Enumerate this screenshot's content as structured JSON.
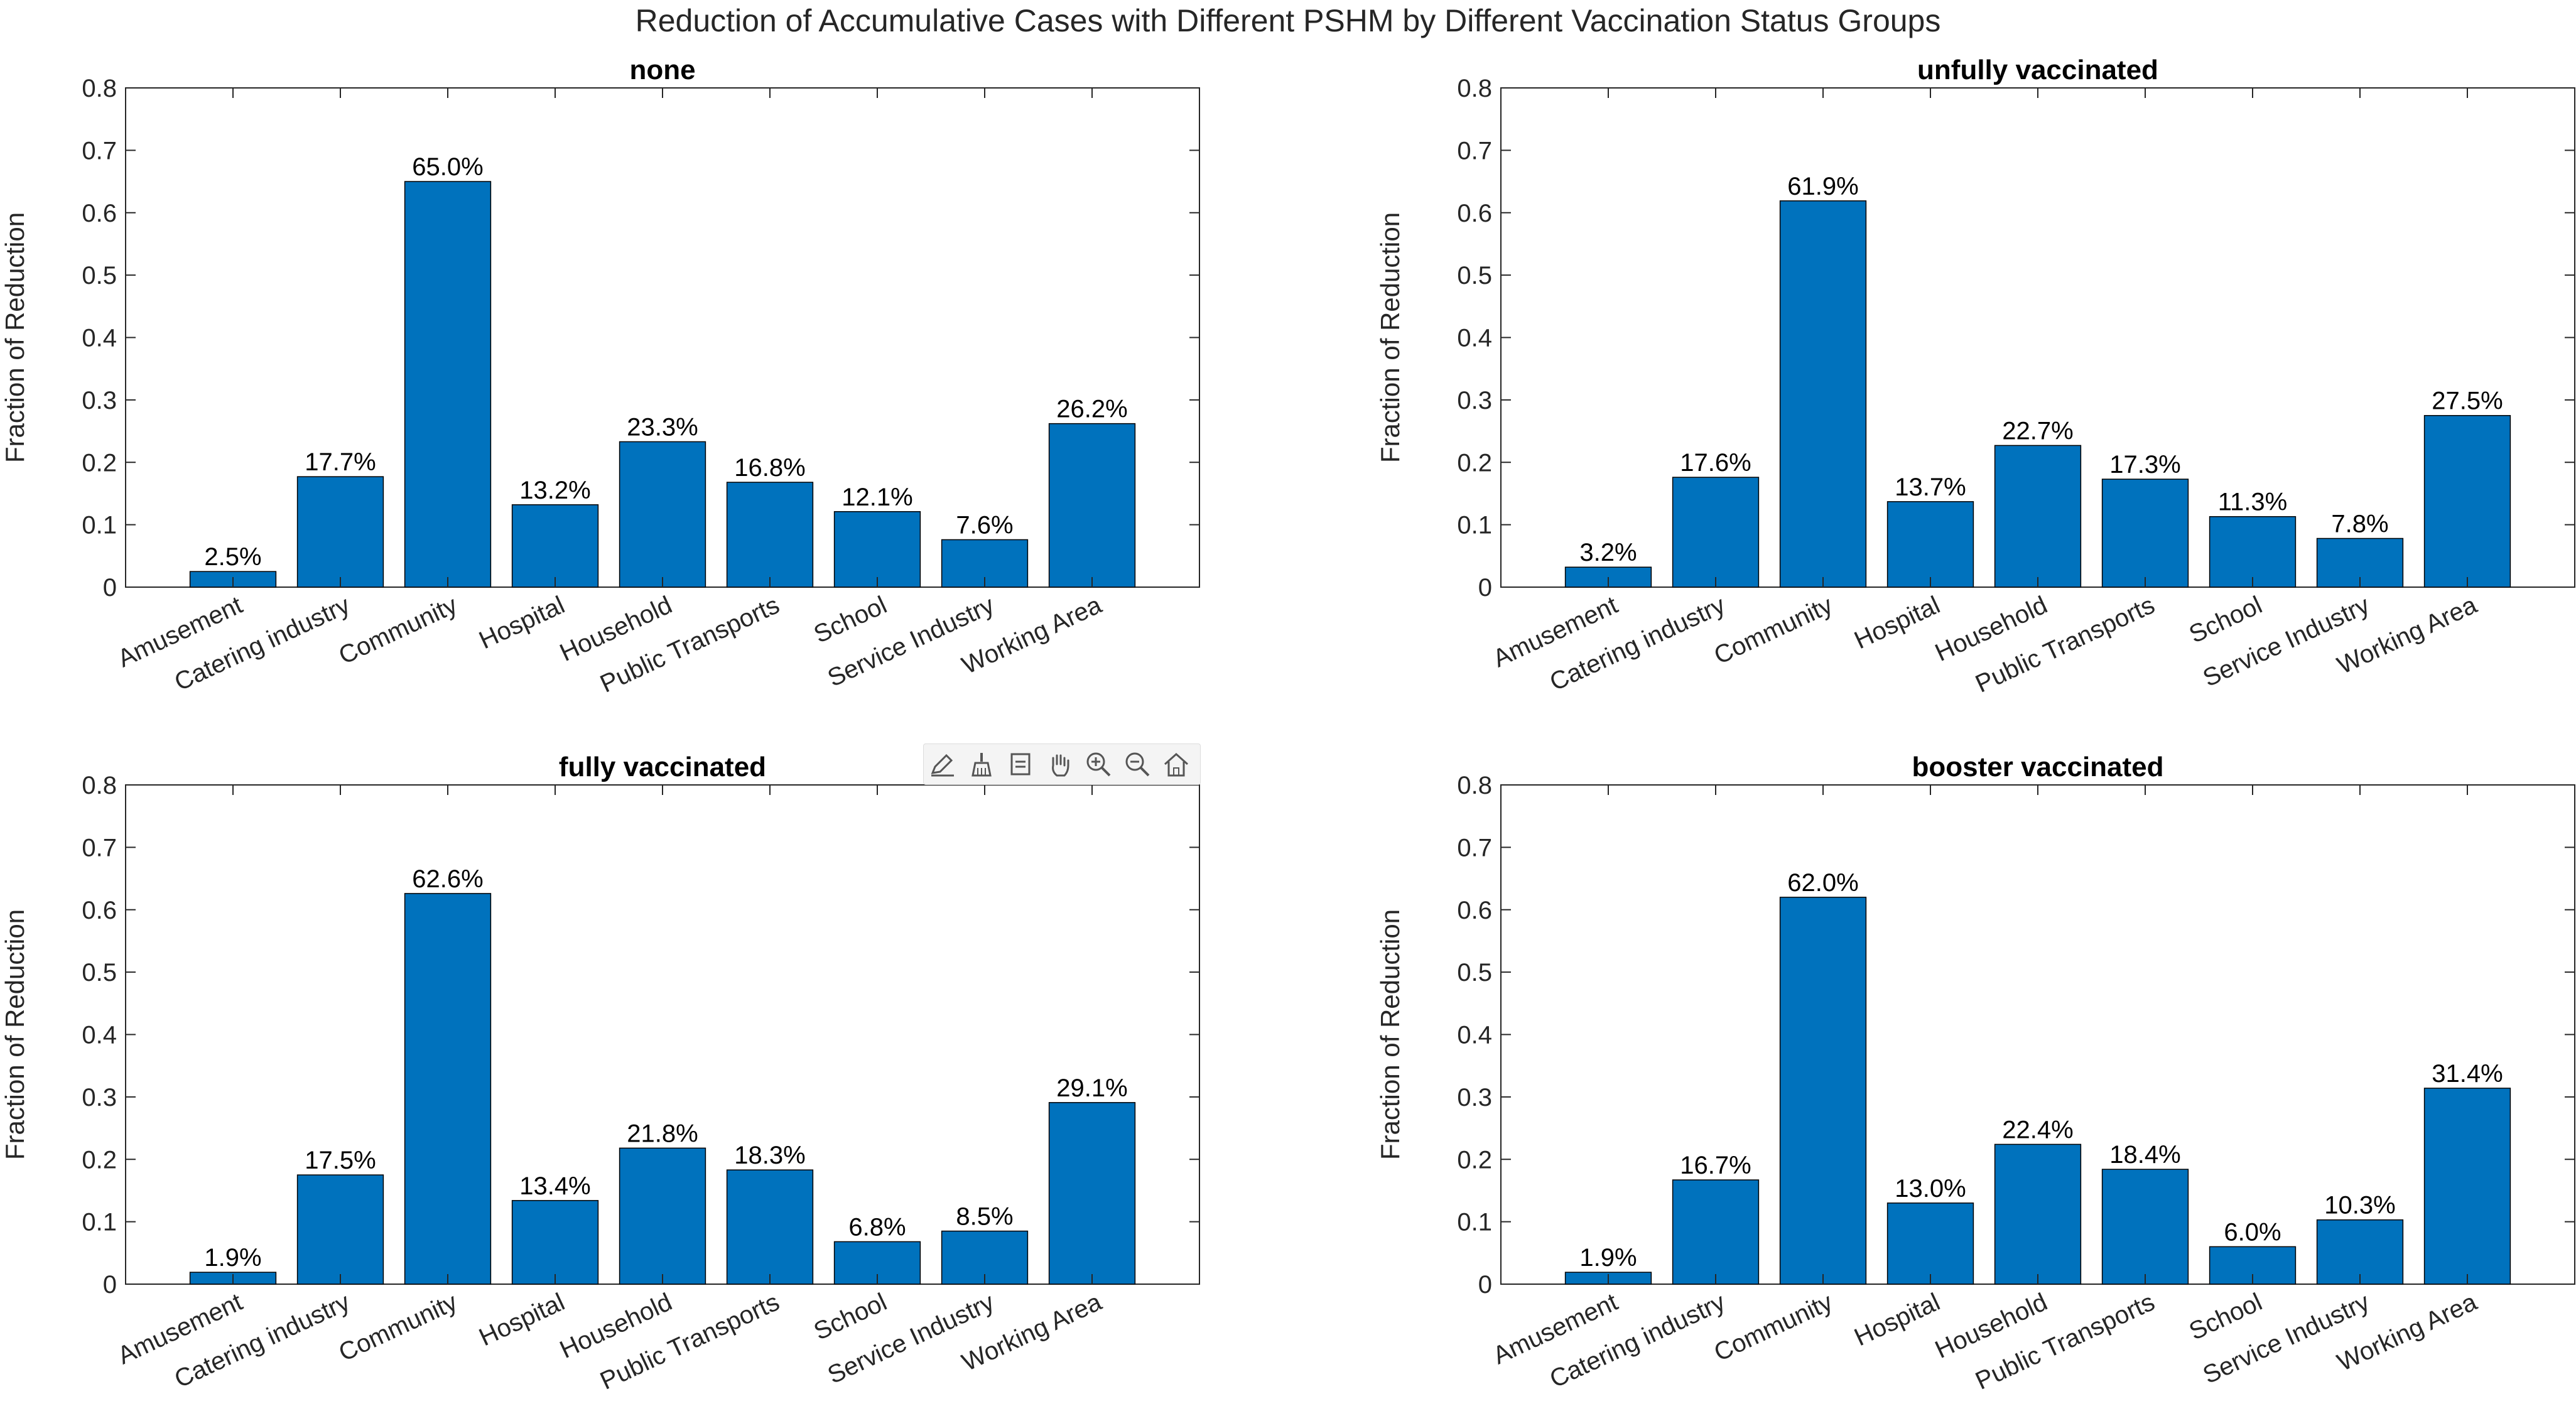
{
  "figure_title": "Reduction of Accumulative Cases with Different PSHM by Different Vaccination Status Groups",
  "colors": {
    "bar": "#0072BD",
    "axis": "#262626"
  },
  "toolbar_icons": [
    "edit-icon",
    "brush-icon",
    "datatip-icon",
    "pan-icon",
    "zoom-in-icon",
    "zoom-out-icon",
    "home-icon"
  ],
  "chart_data": [
    {
      "type": "bar",
      "title": "none",
      "xlabel": "",
      "ylabel": "Fraction of Reduction",
      "ylim": [
        0,
        0.8
      ],
      "yticks": [
        "0",
        "0.1",
        "0.2",
        "0.3",
        "0.4",
        "0.5",
        "0.6",
        "0.7",
        "0.8"
      ],
      "categories": [
        "Amusement",
        "Catering industry",
        "Community",
        "Hospital",
        "Household",
        "Public Transports",
        "School",
        "Service Industry",
        "Working Area"
      ],
      "values": [
        0.025,
        0.177,
        0.65,
        0.132,
        0.233,
        0.168,
        0.121,
        0.076,
        0.262
      ],
      "data_labels": [
        "2.5%",
        "17.7%",
        "65.0%",
        "13.2%",
        "23.3%",
        "16.8%",
        "12.1%",
        "7.6%",
        "26.2%"
      ]
    },
    {
      "type": "bar",
      "title": "unfully vaccinated",
      "xlabel": "",
      "ylabel": "Fraction of Reduction",
      "ylim": [
        0,
        0.8
      ],
      "yticks": [
        "0",
        "0.1",
        "0.2",
        "0.3",
        "0.4",
        "0.5",
        "0.6",
        "0.7",
        "0.8"
      ],
      "categories": [
        "Amusement",
        "Catering industry",
        "Community",
        "Hospital",
        "Household",
        "Public Transports",
        "School",
        "Service Industry",
        "Working Area"
      ],
      "values": [
        0.032,
        0.176,
        0.619,
        0.137,
        0.227,
        0.173,
        0.113,
        0.078,
        0.275
      ],
      "data_labels": [
        "3.2%",
        "17.6%",
        "61.9%",
        "13.7%",
        "22.7%",
        "17.3%",
        "11.3%",
        "7.8%",
        "27.5%"
      ]
    },
    {
      "type": "bar",
      "title": "fully vaccinated",
      "xlabel": "",
      "ylabel": "Fraction of Reduction",
      "ylim": [
        0,
        0.8
      ],
      "yticks": [
        "0",
        "0.1",
        "0.2",
        "0.3",
        "0.4",
        "0.5",
        "0.6",
        "0.7",
        "0.8"
      ],
      "categories": [
        "Amusement",
        "Catering industry",
        "Community",
        "Hospital",
        "Household",
        "Public Transports",
        "School",
        "Service Industry",
        "Working Area"
      ],
      "values": [
        0.019,
        0.175,
        0.626,
        0.134,
        0.218,
        0.183,
        0.068,
        0.085,
        0.291
      ],
      "data_labels": [
        "1.9%",
        "17.5%",
        "62.6%",
        "13.4%",
        "21.8%",
        "18.3%",
        "6.8%",
        "8.5%",
        "29.1%"
      ]
    },
    {
      "type": "bar",
      "title": "booster vaccinated",
      "xlabel": "",
      "ylabel": "Fraction of Reduction",
      "ylim": [
        0,
        0.8
      ],
      "yticks": [
        "0",
        "0.1",
        "0.2",
        "0.3",
        "0.4",
        "0.5",
        "0.6",
        "0.7",
        "0.8"
      ],
      "categories": [
        "Amusement",
        "Catering industry",
        "Community",
        "Hospital",
        "Household",
        "Public Transports",
        "School",
        "Service Industry",
        "Working Area"
      ],
      "values": [
        0.019,
        0.167,
        0.62,
        0.13,
        0.224,
        0.184,
        0.06,
        0.103,
        0.314
      ],
      "data_labels": [
        "1.9%",
        "16.7%",
        "62.0%",
        "13.0%",
        "22.4%",
        "18.4%",
        "6.0%",
        "10.3%",
        "31.4%"
      ]
    }
  ]
}
